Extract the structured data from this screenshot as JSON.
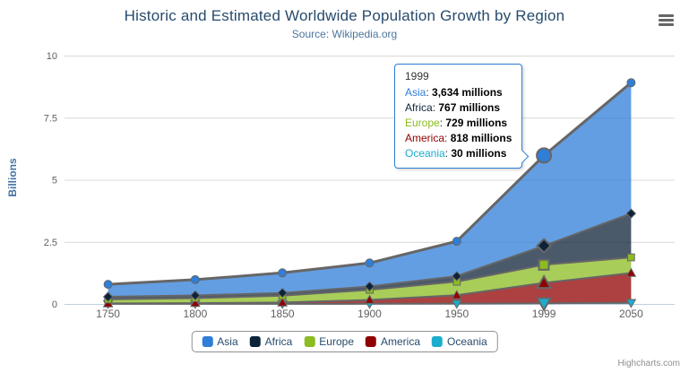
{
  "header": {
    "title": "Historic and Estimated Worldwide Population Growth by Region",
    "subtitle": "Source: Wikipedia.org"
  },
  "menu": {
    "icon": "hamburger-icon"
  },
  "chart_data": {
    "type": "area",
    "stacking": "normal",
    "categories": [
      "1750",
      "1800",
      "1850",
      "1900",
      "1950",
      "1999",
      "2050"
    ],
    "series": [
      {
        "name": "Asia",
        "color": "#2f7ed8",
        "marker": "circle",
        "values": [
          502,
          635,
          809,
          947,
          1402,
          3634,
          5268
        ]
      },
      {
        "name": "Africa",
        "color": "#0d233a",
        "marker": "diamond",
        "values": [
          106,
          107,
          111,
          133,
          221,
          767,
          1766
        ]
      },
      {
        "name": "Europe",
        "color": "#8bbc21",
        "marker": "square",
        "values": [
          163,
          203,
          276,
          408,
          547,
          729,
          628
        ]
      },
      {
        "name": "America",
        "color": "#910000",
        "marker": "triangle",
        "values": [
          18,
          31,
          54,
          156,
          339,
          818,
          1201
        ]
      },
      {
        "name": "Oceania",
        "color": "#1aadce",
        "marker": "triangle-down",
        "values": [
          2,
          2,
          2,
          6,
          13,
          30,
          46
        ]
      }
    ],
    "value_unit": "millions",
    "y_unit_divisor": 1000,
    "ylabel": "Billions",
    "yticks": [
      0,
      2.5,
      5,
      7.5,
      10
    ],
    "ylim": [
      0,
      10
    ],
    "grid": "horizontal",
    "legend_position": "bottom",
    "hover_category_index": 5,
    "line_color": "#666666",
    "fill_opacity": 0.75,
    "axis_line_color": "#c0d0e0",
    "grid_color": "#d8d8d8",
    "axis_label_color": "#606060"
  },
  "tooltip": {
    "category": "1999",
    "rows": [
      {
        "series": "Asia",
        "value": "3,634 millions"
      },
      {
        "series": "Africa",
        "value": "767 millions"
      },
      {
        "series": "Europe",
        "value": "729 millions"
      },
      {
        "series": "America",
        "value": "818 millions"
      },
      {
        "series": "Oceania",
        "value": "30 millions"
      }
    ]
  },
  "credits": {
    "label": "Highcharts.com"
  }
}
